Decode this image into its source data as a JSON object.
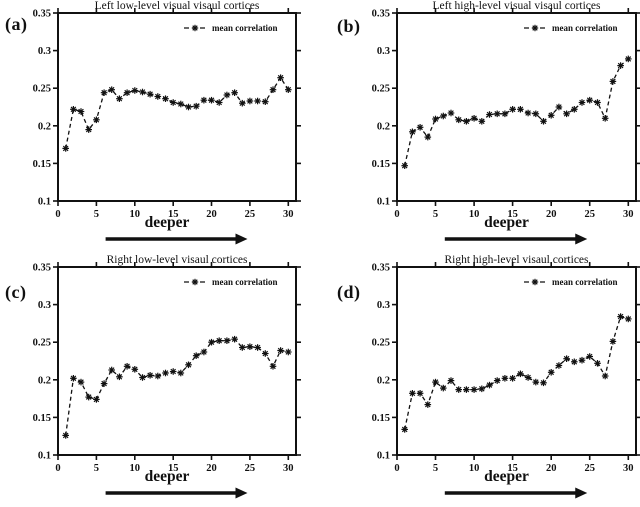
{
  "figure": {
    "background": "#ffffff",
    "ink_color": "#111111"
  },
  "chart_data": [
    {
      "type": "line",
      "panel_label": "(a)",
      "title": "Left low-level visual visaul cortices",
      "legend": "mean correlation",
      "legend_position": "top-right",
      "marker": "asterisk",
      "line_style": "dashed",
      "color": "#111111",
      "xlabel": "deeper",
      "xlim": [
        0,
        31
      ],
      "ylim": [
        0.1,
        0.35
      ],
      "xticks": [
        0,
        5,
        10,
        15,
        20,
        25,
        30
      ],
      "yticks": [
        0.1,
        0.15,
        0.2,
        0.25,
        0.3,
        0.35
      ],
      "x": [
        1,
        2,
        3,
        4,
        5,
        6,
        7,
        8,
        9,
        10,
        11,
        12,
        13,
        14,
        15,
        16,
        17,
        18,
        19,
        20,
        21,
        22,
        23,
        24,
        25,
        26,
        27,
        28,
        29,
        30
      ],
      "values": [
        0.17,
        0.222,
        0.219,
        0.195,
        0.208,
        0.244,
        0.248,
        0.236,
        0.244,
        0.247,
        0.245,
        0.242,
        0.239,
        0.236,
        0.231,
        0.229,
        0.225,
        0.226,
        0.234,
        0.234,
        0.231,
        0.241,
        0.244,
        0.23,
        0.233,
        0.233,
        0.232,
        0.248,
        0.264,
        0.248
      ]
    },
    {
      "type": "line",
      "panel_label": "(b)",
      "title": "Left high-level visual visaul cortices",
      "legend": "mean correlation",
      "legend_position": "top-right",
      "marker": "asterisk",
      "line_style": "dashed",
      "color": "#111111",
      "xlabel": "deeper",
      "xlim": [
        0,
        31
      ],
      "ylim": [
        0.1,
        0.35
      ],
      "xticks": [
        0,
        5,
        10,
        15,
        20,
        25,
        30
      ],
      "yticks": [
        0.1,
        0.15,
        0.2,
        0.25,
        0.3,
        0.35
      ],
      "x": [
        1,
        2,
        3,
        4,
        5,
        6,
        7,
        8,
        9,
        10,
        11,
        12,
        13,
        14,
        15,
        16,
        17,
        18,
        19,
        20,
        21,
        22,
        23,
        24,
        25,
        26,
        27,
        28,
        29,
        30
      ],
      "values": [
        0.147,
        0.192,
        0.198,
        0.185,
        0.209,
        0.213,
        0.217,
        0.208,
        0.206,
        0.21,
        0.206,
        0.215,
        0.216,
        0.216,
        0.222,
        0.222,
        0.217,
        0.216,
        0.206,
        0.214,
        0.225,
        0.216,
        0.222,
        0.231,
        0.234,
        0.231,
        0.21,
        0.259,
        0.28,
        0.289
      ]
    },
    {
      "type": "line",
      "panel_label": "(c)",
      "title": "Right low-level visaul cortices",
      "legend": "mean correlation",
      "legend_position": "top-right",
      "marker": "asterisk",
      "line_style": "dashed",
      "color": "#111111",
      "xlabel": "deeper",
      "xlim": [
        0,
        31
      ],
      "ylim": [
        0.1,
        0.35
      ],
      "xticks": [
        0,
        5,
        10,
        15,
        20,
        25,
        30
      ],
      "yticks": [
        0.1,
        0.15,
        0.2,
        0.25,
        0.3,
        0.35
      ],
      "x": [
        1,
        2,
        3,
        4,
        5,
        6,
        7,
        8,
        9,
        10,
        11,
        12,
        13,
        14,
        15,
        16,
        17,
        18,
        19,
        20,
        21,
        22,
        23,
        24,
        25,
        26,
        27,
        28,
        29,
        30
      ],
      "values": [
        0.126,
        0.202,
        0.197,
        0.177,
        0.174,
        0.195,
        0.213,
        0.204,
        0.218,
        0.214,
        0.203,
        0.206,
        0.205,
        0.209,
        0.211,
        0.209,
        0.22,
        0.232,
        0.237,
        0.25,
        0.252,
        0.252,
        0.254,
        0.243,
        0.244,
        0.243,
        0.235,
        0.218,
        0.239,
        0.237
      ]
    },
    {
      "type": "line",
      "panel_label": "(d)",
      "title": "Right high-level visaul cortices",
      "legend": "mean correlation",
      "legend_position": "top-right",
      "marker": "asterisk",
      "line_style": "dashed",
      "color": "#111111",
      "xlabel": "deeper",
      "xlim": [
        0,
        31
      ],
      "ylim": [
        0.1,
        0.35
      ],
      "xticks": [
        0,
        5,
        10,
        15,
        20,
        25,
        30
      ],
      "yticks": [
        0.1,
        0.15,
        0.2,
        0.25,
        0.3,
        0.35
      ],
      "x": [
        1,
        2,
        3,
        4,
        5,
        6,
        7,
        8,
        9,
        10,
        11,
        12,
        13,
        14,
        15,
        16,
        17,
        18,
        19,
        20,
        21,
        22,
        23,
        24,
        25,
        26,
        27,
        28,
        29,
        30
      ],
      "values": [
        0.134,
        0.182,
        0.182,
        0.167,
        0.197,
        0.189,
        0.199,
        0.187,
        0.187,
        0.187,
        0.188,
        0.193,
        0.199,
        0.202,
        0.202,
        0.208,
        0.203,
        0.197,
        0.196,
        0.21,
        0.219,
        0.228,
        0.224,
        0.226,
        0.231,
        0.222,
        0.205,
        0.251,
        0.284,
        0.281
      ]
    }
  ]
}
